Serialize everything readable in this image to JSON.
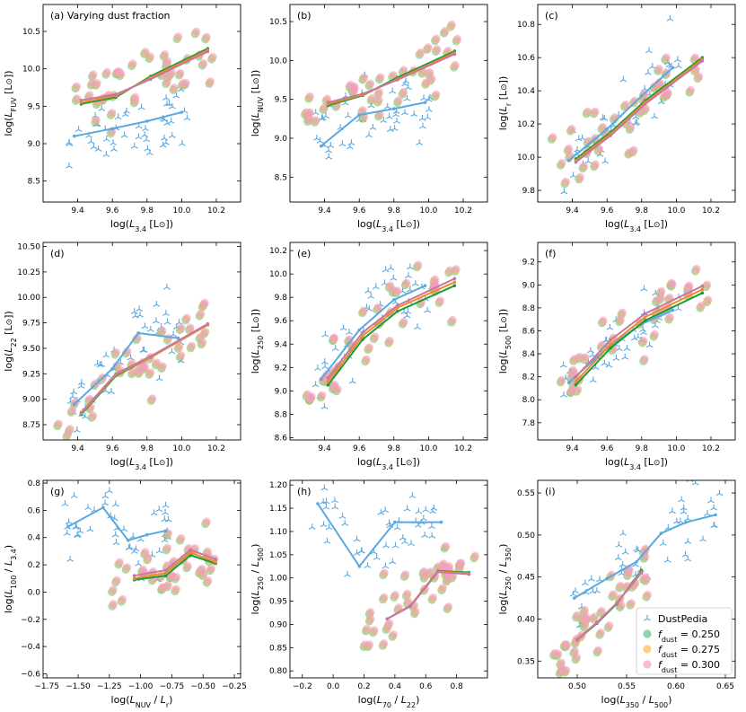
{
  "colors": {
    "dustpedia": "#5aa9e0",
    "f0250": "#55c487",
    "f0275": "#f2c04c",
    "f0300": "#ee9ec8",
    "line0250": "#1a9c3a",
    "line0275": "#f08a24",
    "line0300": "#c876a4"
  },
  "legend": {
    "entries": [
      {
        "key": "dustpedia",
        "label": "DustPedia"
      },
      {
        "key": "f0250",
        "label": "f_dust = 0.250",
        "prefix": "f",
        "sub": "dust",
        "value": " = 0.250"
      },
      {
        "key": "f0275",
        "label": "f_dust = 0.275",
        "prefix": "f",
        "sub": "dust",
        "value": " = 0.275"
      },
      {
        "key": "f0300",
        "label": "f_dust = 0.300",
        "prefix": "f",
        "sub": "dust",
        "value": " = 0.300"
      }
    ]
  },
  "chart_data": [
    {
      "id": "a",
      "type": "scatter",
      "title": "(a)  Varying dust fraction",
      "xlabel": "log(L3.4 [L⊙])",
      "xlabel_parts": [
        "log(",
        "L",
        "3.4",
        " [L",
        "⊙",
        "])"
      ],
      "ylabel": "log(LFUV [L⊙])",
      "ylabel_parts": [
        "log(",
        "L",
        "FUV",
        " [L",
        "⊙",
        "])"
      ],
      "xlim": [
        9.2,
        10.34
      ],
      "ylim": [
        8.22,
        10.86
      ],
      "xticks": [
        9.4,
        9.6,
        9.8,
        10.0,
        10.2
      ],
      "yticks": [
        8.5,
        9.0,
        9.5,
        10.0,
        10.5
      ],
      "tick_decimals": [
        1,
        1
      ],
      "obs_line": [
        [
          9.38,
          9.1
        ],
        [
          9.6,
          9.2
        ],
        [
          9.8,
          9.3
        ],
        [
          10.0,
          9.42
        ]
      ],
      "model_lines": [
        [
          [
            9.42,
            9.53
          ],
          [
            9.62,
            9.62
          ],
          [
            9.82,
            9.9
          ],
          [
            10.15,
            10.27
          ]
        ],
        [
          [
            9.42,
            9.55
          ],
          [
            9.62,
            9.64
          ],
          [
            9.82,
            9.88
          ],
          [
            10.15,
            10.25
          ]
        ],
        [
          [
            9.42,
            9.58
          ],
          [
            9.62,
            9.66
          ],
          [
            9.82,
            9.86
          ],
          [
            10.15,
            10.23
          ]
        ]
      ]
    },
    {
      "id": "b",
      "type": "scatter",
      "title": "(b)",
      "xlabel": "log(L3.4 [L⊙])",
      "xlabel_parts": [
        "log(",
        "L",
        "3.4",
        " [L",
        "⊙",
        "])"
      ],
      "ylabel": "log(LNUV [L⊙])",
      "ylabel_parts": [
        "log(",
        "L",
        "NUV",
        " [L",
        "⊙",
        "])"
      ],
      "xlim": [
        9.2,
        10.34
      ],
      "ylim": [
        8.18,
        10.72
      ],
      "xticks": [
        9.4,
        9.6,
        9.8,
        10.0,
        10.2
      ],
      "yticks": [
        8.5,
        9.0,
        9.5,
        10.0,
        10.5
      ],
      "tick_decimals": [
        1,
        1
      ],
      "obs_line": [
        [
          9.38,
          8.9
        ],
        [
          9.6,
          9.3
        ],
        [
          9.8,
          9.38
        ],
        [
          9.98,
          9.46
        ]
      ],
      "model_lines": [
        [
          [
            9.42,
            9.42
          ],
          [
            9.62,
            9.55
          ],
          [
            9.82,
            9.78
          ],
          [
            10.15,
            10.12
          ]
        ],
        [
          [
            9.42,
            9.44
          ],
          [
            9.62,
            9.56
          ],
          [
            9.82,
            9.76
          ],
          [
            10.15,
            10.1
          ]
        ],
        [
          [
            9.42,
            9.46
          ],
          [
            9.62,
            9.57
          ],
          [
            9.82,
            9.75
          ],
          [
            10.15,
            10.08
          ]
        ]
      ]
    },
    {
      "id": "c",
      "type": "scatter",
      "title": "(c)",
      "xlabel": "log(L3.4 [L⊙])",
      "xlabel_parts": [
        "log(",
        "L",
        "3.4",
        " [L",
        "⊙",
        "])"
      ],
      "ylabel": "log(Lr [L⊙])",
      "ylabel_parts": [
        "log(",
        "L",
        "r",
        " [L",
        "⊙",
        "])"
      ],
      "xlim": [
        9.2,
        10.34
      ],
      "ylim": [
        9.73,
        10.92
      ],
      "xticks": [
        9.4,
        9.6,
        9.8,
        10.0,
        10.2
      ],
      "yticks": [
        9.8,
        10.0,
        10.2,
        10.4,
        10.6,
        10.8
      ],
      "tick_decimals": [
        1,
        1
      ],
      "obs_line": [
        [
          9.38,
          9.98
        ],
        [
          9.6,
          10.17
        ],
        [
          9.8,
          10.37
        ],
        [
          9.98,
          10.54
        ]
      ],
      "model_lines": [
        [
          [
            9.42,
            9.99
          ],
          [
            9.62,
            10.15
          ],
          [
            9.82,
            10.34
          ],
          [
            10.15,
            10.6
          ]
        ],
        [
          [
            9.42,
            9.98
          ],
          [
            9.62,
            10.14
          ],
          [
            9.82,
            10.33
          ],
          [
            10.15,
            10.59
          ]
        ],
        [
          [
            9.42,
            9.97
          ],
          [
            9.62,
            10.13
          ],
          [
            9.82,
            10.32
          ],
          [
            10.15,
            10.58
          ]
        ]
      ]
    },
    {
      "id": "d",
      "type": "scatter",
      "title": "(d)",
      "xlabel": "log(L3.4 [L⊙])",
      "xlabel_parts": [
        "log(",
        "L",
        "3.4",
        " [L",
        "⊙",
        "])"
      ],
      "ylabel": "log(L22 [L⊙])",
      "ylabel_parts": [
        "log(",
        "L",
        "22",
        " [L",
        "⊙",
        "])"
      ],
      "xlim": [
        9.2,
        10.34
      ],
      "ylim": [
        8.6,
        10.54
      ],
      "xticks": [
        9.4,
        9.6,
        9.8,
        10.0,
        10.2
      ],
      "yticks": [
        8.75,
        9.0,
        9.25,
        9.5,
        9.75,
        10.0,
        10.25,
        10.5
      ],
      "tick_decimals": [
        1,
        2
      ],
      "obs_line": [
        [
          9.38,
          8.95
        ],
        [
          9.6,
          9.3
        ],
        [
          9.75,
          9.65
        ],
        [
          9.98,
          9.6
        ]
      ],
      "model_lines": [
        [
          [
            9.42,
            8.85
          ],
          [
            9.62,
            9.23
          ],
          [
            9.82,
            9.41
          ],
          [
            10.15,
            9.73
          ]
        ],
        [
          [
            9.42,
            8.86
          ],
          [
            9.62,
            9.24
          ],
          [
            9.82,
            9.41
          ],
          [
            10.15,
            9.73
          ]
        ],
        [
          [
            9.42,
            8.87
          ],
          [
            9.62,
            9.25
          ],
          [
            9.82,
            9.42
          ],
          [
            10.15,
            9.74
          ]
        ]
      ]
    },
    {
      "id": "e",
      "type": "scatter",
      "title": "(e)",
      "xlabel": "log(L3.4 [L⊙])",
      "xlabel_parts": [
        "log(",
        "L",
        "3.4",
        " [L",
        "⊙",
        "])"
      ],
      "ylabel": "log(L250 [L⊙])",
      "ylabel_parts": [
        "log(",
        "L",
        "250",
        " [L",
        "⊙",
        "])"
      ],
      "xlim": [
        9.2,
        10.34
      ],
      "ylim": [
        8.58,
        10.27
      ],
      "xticks": [
        9.4,
        9.6,
        9.8,
        10.0,
        10.2
      ],
      "yticks": [
        8.6,
        8.8,
        9.0,
        9.2,
        9.4,
        9.6,
        9.8,
        10.0,
        10.2
      ],
      "tick_decimals": [
        1,
        1
      ],
      "obs_line": [
        [
          9.38,
          9.1
        ],
        [
          9.6,
          9.52
        ],
        [
          9.8,
          9.78
        ],
        [
          9.98,
          9.9
        ]
      ],
      "model_lines": [
        [
          [
            9.42,
            9.05
          ],
          [
            9.62,
            9.44
          ],
          [
            9.82,
            9.68
          ],
          [
            10.15,
            9.9
          ]
        ],
        [
          [
            9.42,
            9.08
          ],
          [
            9.62,
            9.47
          ],
          [
            9.82,
            9.71
          ],
          [
            10.15,
            9.93
          ]
        ],
        [
          [
            9.42,
            9.11
          ],
          [
            9.62,
            9.5
          ],
          [
            9.82,
            9.73
          ],
          [
            10.15,
            9.96
          ]
        ]
      ]
    },
    {
      "id": "f",
      "type": "scatter",
      "title": "(f)",
      "xlabel": "log(L3.4 [L⊙])",
      "xlabel_parts": [
        "log(",
        "L",
        "3.4",
        " [L",
        "⊙",
        "])"
      ],
      "ylabel": "log(L500 [L⊙])",
      "ylabel_parts": [
        "log(",
        "L",
        "500",
        " [L",
        "⊙",
        "])"
      ],
      "xlim": [
        9.2,
        10.34
      ],
      "ylim": [
        7.65,
        9.37
      ],
      "xticks": [
        9.4,
        9.6,
        9.8,
        10.0,
        10.2
      ],
      "yticks": [
        7.8,
        8.0,
        8.2,
        8.4,
        8.6,
        8.8,
        9.0,
        9.2
      ],
      "tick_decimals": [
        1,
        1
      ],
      "obs_line": [
        [
          9.38,
          8.15
        ],
        [
          9.6,
          8.45
        ],
        [
          9.8,
          8.66
        ],
        [
          9.98,
          8.78
        ]
      ],
      "model_lines": [
        [
          [
            9.42,
            8.13
          ],
          [
            9.62,
            8.45
          ],
          [
            9.82,
            8.69
          ],
          [
            10.15,
            8.93
          ]
        ],
        [
          [
            9.42,
            8.16
          ],
          [
            9.62,
            8.48
          ],
          [
            9.82,
            8.72
          ],
          [
            10.15,
            8.96
          ]
        ],
        [
          [
            9.42,
            8.2
          ],
          [
            9.62,
            8.52
          ],
          [
            9.82,
            8.75
          ],
          [
            10.15,
            8.99
          ]
        ]
      ]
    },
    {
      "id": "g",
      "type": "scatter",
      "title": "(g)",
      "xlabel": "log(LNUV / Lr)",
      "xlabel_parts": [
        "log(",
        "L",
        "NUV",
        " / ",
        "L",
        "r",
        ")"
      ],
      "ylabel": "log(L100 / L3.4)",
      "ylabel_parts": [
        "log(",
        "L",
        "100",
        " / ",
        "L",
        "3.4",
        ")"
      ],
      "xlim": [
        -1.78,
        -0.2
      ],
      "ylim": [
        -0.63,
        0.82
      ],
      "xticks": [
        -1.75,
        -1.5,
        -1.25,
        -1.0,
        -0.75,
        -0.5,
        -0.25
      ],
      "yticks": [
        -0.6,
        -0.4,
        -0.2,
        0.0,
        0.2,
        0.4,
        0.6,
        0.8
      ],
      "tick_decimals": [
        2,
        1
      ],
      "obs_line": [
        [
          -1.58,
          0.48
        ],
        [
          -1.3,
          0.62
        ],
        [
          -1.1,
          0.38
        ],
        [
          -0.95,
          0.42
        ],
        [
          -0.8,
          0.45
        ]
      ],
      "model_lines": [
        [
          [
            -1.05,
            0.09
          ],
          [
            -0.8,
            0.12
          ],
          [
            -0.6,
            0.27
          ],
          [
            -0.4,
            0.21
          ]
        ],
        [
          [
            -1.05,
            0.1
          ],
          [
            -0.8,
            0.14
          ],
          [
            -0.6,
            0.29
          ],
          [
            -0.4,
            0.22
          ]
        ],
        [
          [
            -1.05,
            0.12
          ],
          [
            -0.8,
            0.16
          ],
          [
            -0.6,
            0.31
          ],
          [
            -0.4,
            0.24
          ]
        ]
      ]
    },
    {
      "id": "h",
      "type": "scatter",
      "title": "(h)",
      "xlabel": "log(L70 / L22)",
      "xlabel_parts": [
        "log(",
        "L",
        "70",
        " / ",
        "L",
        "22",
        ")"
      ],
      "ylabel": "log(L250 / L500)",
      "ylabel_parts": [
        "log(",
        "L",
        "250",
        " / ",
        "L",
        "500",
        ")"
      ],
      "xlim": [
        -0.28,
        1.0
      ],
      "ylim": [
        0.785,
        1.21
      ],
      "xticks": [
        -0.2,
        0.0,
        0.2,
        0.4,
        0.6,
        0.8
      ],
      "yticks": [
        0.8,
        0.85,
        0.9,
        0.95,
        1.0,
        1.05,
        1.1,
        1.15,
        1.2
      ],
      "tick_decimals": [
        1,
        2
      ],
      "obs_line": [
        [
          -0.1,
          1.16
        ],
        [
          0.17,
          1.025
        ],
        [
          0.4,
          1.12
        ],
        [
          0.7,
          1.12
        ]
      ],
      "model_lines": [
        [
          [
            0.35,
            0.912
          ],
          [
            0.5,
            0.94
          ],
          [
            0.68,
            1.015
          ],
          [
            0.88,
            1.012
          ]
        ],
        [
          [
            0.35,
            0.912
          ],
          [
            0.5,
            0.94
          ],
          [
            0.68,
            1.014
          ],
          [
            0.88,
            1.01
          ]
        ],
        [
          [
            0.35,
            0.912
          ],
          [
            0.5,
            0.939
          ],
          [
            0.68,
            1.013
          ],
          [
            0.88,
            1.008
          ]
        ]
      ]
    },
    {
      "id": "i",
      "type": "scatter",
      "title": "(i)",
      "xlabel": "log(L350 / L500)",
      "xlabel_parts": [
        "log(",
        "L",
        "350",
        " / ",
        "L",
        "500",
        ")"
      ],
      "ylabel": "log(L250 / L350)",
      "ylabel_parts": [
        "log(",
        "L",
        "250",
        " / ",
        "L",
        "350",
        ")"
      ],
      "xlim": [
        0.46,
        0.66
      ],
      "ylim": [
        0.33,
        0.565
      ],
      "xticks": [
        0.5,
        0.55,
        0.6,
        0.65
      ],
      "yticks": [
        0.35,
        0.4,
        0.45,
        0.5,
        0.55
      ],
      "tick_decimals": [
        2,
        2
      ],
      "obs_line": [
        [
          0.497,
          0.425
        ],
        [
          0.53,
          0.448
        ],
        [
          0.56,
          0.468
        ],
        [
          0.585,
          0.502
        ],
        [
          0.61,
          0.515
        ],
        [
          0.64,
          0.524
        ]
      ],
      "model_lines": [
        [
          [
            0.5,
            0.375
          ],
          [
            0.52,
            0.395
          ],
          [
            0.54,
            0.418
          ],
          [
            0.565,
            0.458
          ]
        ],
        [
          [
            0.5,
            0.375
          ],
          [
            0.52,
            0.396
          ],
          [
            0.54,
            0.419
          ],
          [
            0.565,
            0.456
          ]
        ],
        [
          [
            0.5,
            0.376
          ],
          [
            0.52,
            0.396
          ],
          [
            0.54,
            0.419
          ],
          [
            0.565,
            0.455
          ]
        ]
      ]
    }
  ]
}
